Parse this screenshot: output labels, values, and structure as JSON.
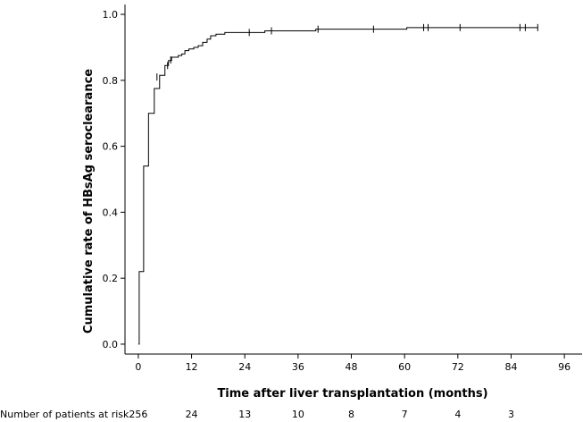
{
  "chart_data": {
    "type": "line",
    "subtype": "kaplan-meier-cumulative",
    "title": "",
    "xlabel": "Time after liver transplantation (months)",
    "ylabel": "Cumulative rate of HBsAg seroclearance",
    "xlim": [
      -3,
      100
    ],
    "ylim": [
      -0.03,
      1.03
    ],
    "x_ticks": [
      0,
      12,
      24,
      36,
      48,
      60,
      72,
      84,
      96
    ],
    "y_ticks": [
      0.0,
      0.2,
      0.4,
      0.6,
      0.8,
      1.0
    ],
    "y_tick_labels": [
      "0.0",
      "0.2",
      "0.4",
      "0.6",
      "0.8",
      "1.0"
    ],
    "grid": false,
    "legend": "none",
    "series": [
      {
        "steps": [
          [
            0,
            0.0
          ],
          [
            0.2,
            0.22
          ],
          [
            1.2,
            0.54
          ],
          [
            2.3,
            0.7
          ],
          [
            3.6,
            0.775
          ],
          [
            4.8,
            0.815
          ],
          [
            6.0,
            0.845
          ],
          [
            6.8,
            0.86
          ],
          [
            7.5,
            0.87
          ],
          [
            9.0,
            0.875
          ],
          [
            9.8,
            0.88
          ],
          [
            10.5,
            0.89
          ],
          [
            11.4,
            0.895
          ],
          [
            12.5,
            0.9
          ],
          [
            13.5,
            0.905
          ],
          [
            14.5,
            0.915
          ],
          [
            15.5,
            0.925
          ],
          [
            16.3,
            0.935
          ],
          [
            17.5,
            0.94
          ],
          [
            19.5,
            0.945
          ],
          [
            28.5,
            0.95
          ],
          [
            40.0,
            0.955
          ],
          [
            60.5,
            0.96
          ],
          [
            90,
            0.96
          ]
        ],
        "censor_marks": [
          [
            4.2,
            0.81
          ],
          [
            6.6,
            0.845
          ],
          [
            7.3,
            0.862
          ],
          [
            25.0,
            0.945
          ],
          [
            30.0,
            0.95
          ],
          [
            40.5,
            0.955
          ],
          [
            53.0,
            0.955
          ],
          [
            64.3,
            0.96
          ],
          [
            65.3,
            0.96
          ],
          [
            72.5,
            0.96
          ],
          [
            86.0,
            0.96
          ],
          [
            87.2,
            0.96
          ],
          [
            90.0,
            0.96
          ]
        ]
      }
    ],
    "risk_table": {
      "label": "Number of patients at risk",
      "values": [
        "256",
        "24",
        "13",
        "10",
        "8",
        "7",
        "4",
        "3"
      ]
    }
  }
}
